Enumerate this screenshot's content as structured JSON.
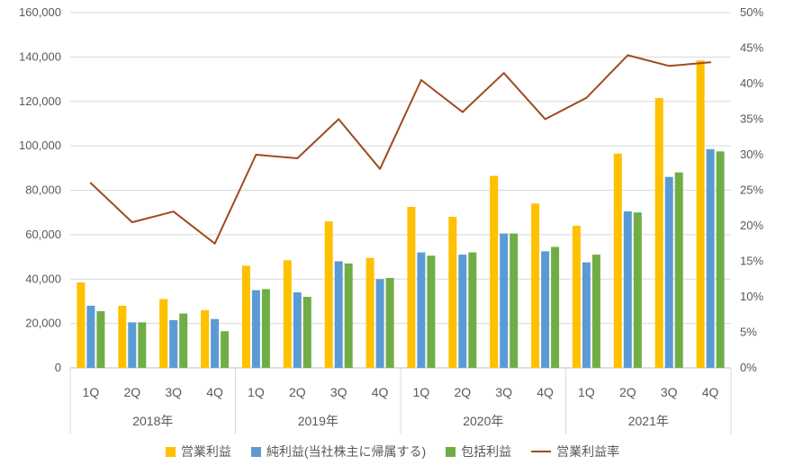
{
  "chart_data": {
    "type": "bar",
    "subtype": "combo-bar-line",
    "title": "",
    "xlabel": "",
    "ylabel": "",
    "grid": true,
    "legend_position": "bottom",
    "year_groups": [
      {
        "label": "2018年",
        "quarters": [
          "1Q",
          "2Q",
          "3Q",
          "4Q"
        ]
      },
      {
        "label": "2019年",
        "quarters": [
          "1Q",
          "2Q",
          "3Q",
          "4Q"
        ]
      },
      {
        "label": "2020年",
        "quarters": [
          "1Q",
          "2Q",
          "3Q",
          "4Q"
        ]
      },
      {
        "label": "2021年",
        "quarters": [
          "1Q",
          "2Q",
          "3Q",
          "4Q"
        ]
      }
    ],
    "left_axis": {
      "min": 0,
      "max": 160000,
      "step": 20000,
      "tick_labels": [
        "0",
        "20,000",
        "40,000",
        "60,000",
        "80,000",
        "100,000",
        "120,000",
        "140,000",
        "160,000"
      ]
    },
    "right_axis": {
      "min": 0,
      "max": 50,
      "step": 5,
      "tick_labels": [
        "0%",
        "5%",
        "10%",
        "15%",
        "20%",
        "25%",
        "30%",
        "35%",
        "40%",
        "45%",
        "50%"
      ]
    },
    "series": [
      {
        "name": "営業利益",
        "key": "operating-profit",
        "type": "bar",
        "axis": "left",
        "color": "#FFC000",
        "values": [
          38500,
          28000,
          31000,
          26000,
          46000,
          48500,
          66000,
          49500,
          72500,
          68000,
          86500,
          74000,
          64000,
          96500,
          121500,
          138500
        ]
      },
      {
        "name": "純利益(当社株主に帰属する)",
        "key": "net-profit",
        "type": "bar",
        "axis": "left",
        "color": "#5B9BD5",
        "values": [
          28000,
          20500,
          21500,
          22000,
          35000,
          34000,
          48000,
          40000,
          52000,
          51000,
          60500,
          52500,
          47500,
          70500,
          86000,
          98500
        ]
      },
      {
        "name": "包括利益",
        "key": "comprehensive-income",
        "type": "bar",
        "axis": "left",
        "color": "#70AD47",
        "values": [
          25500,
          20500,
          24500,
          16500,
          35500,
          32000,
          47000,
          40500,
          50500,
          52000,
          60500,
          54500,
          51000,
          70000,
          88000,
          97500
        ]
      },
      {
        "name": "営業利益率",
        "key": "operating-margin",
        "type": "line",
        "axis": "right",
        "color": "#9E4B1E",
        "values": [
          26,
          20.5,
          22,
          17.5,
          30,
          29.5,
          35,
          28,
          40.5,
          36,
          41.5,
          35,
          38,
          44,
          42.5,
          43
        ]
      }
    ],
    "colors": {
      "gridline": "#D9D9D9",
      "axis_line": "#BFBFBF",
      "text": "#595959",
      "background": "#FFFFFF"
    }
  }
}
